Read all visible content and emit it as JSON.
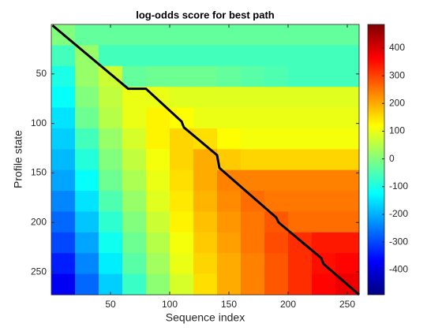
{
  "chart_data": {
    "type": "heatmap",
    "title": "log-odds score for best path",
    "x_label": "Sequence index",
    "y_label": "Profile state",
    "colormap": "jet",
    "xlim": [
      0,
      260
    ],
    "ylim": [
      0,
      273
    ],
    "y_reversed": true,
    "xticks": [
      50,
      100,
      150,
      200,
      250
    ],
    "yticks": [
      50,
      100,
      150,
      200,
      250
    ],
    "clim": [
      -490,
      485
    ],
    "cticks": [
      -400,
      -300,
      -200,
      -100,
      0,
      100,
      200,
      300,
      400
    ],
    "x": [
      10,
      30,
      50,
      70,
      90,
      110,
      130,
      150,
      170,
      190,
      210,
      230,
      250
    ],
    "y": [
      10.5,
      31.5,
      52.5,
      73.5,
      94.5,
      115.5,
      136.5,
      157.5,
      178.5,
      199.5,
      220.5,
      241.5,
      262.5
    ],
    "z": [
      [
        0,
        -30,
        -30,
        -30,
        -30,
        -30,
        -30,
        -30,
        -30,
        -30,
        -30,
        -30,
        -30
      ],
      [
        -60,
        20,
        -60,
        -60,
        -60,
        -60,
        -60,
        -60,
        -60,
        -60,
        -60,
        -60,
        -60
      ],
      [
        -100,
        20,
        70,
        -30,
        -20,
        -20,
        -20,
        -30,
        -40,
        -50,
        -60,
        -60,
        -60
      ],
      [
        -120,
        0,
        60,
        100,
        100,
        90,
        90,
        90,
        90,
        90,
        90,
        90,
        90
      ],
      [
        -150,
        -20,
        50,
        100,
        130,
        120,
        100,
        100,
        100,
        100,
        100,
        100,
        100
      ],
      [
        -170,
        -60,
        20,
        80,
        130,
        160,
        150,
        120,
        110,
        110,
        110,
        110,
        110
      ],
      [
        -190,
        -90,
        0,
        60,
        110,
        160,
        200,
        170,
        160,
        160,
        160,
        160,
        160
      ],
      [
        -210,
        -120,
        -20,
        40,
        100,
        150,
        200,
        240,
        240,
        240,
        240,
        240,
        240
      ],
      [
        -240,
        -150,
        -50,
        20,
        90,
        140,
        190,
        230,
        260,
        250,
        250,
        250,
        250
      ],
      [
        -270,
        -180,
        -80,
        0,
        70,
        130,
        180,
        220,
        250,
        280,
        260,
        260,
        260
      ],
      [
        -300,
        -210,
        -110,
        -20,
        50,
        110,
        170,
        210,
        250,
        290,
        320,
        340,
        340
      ],
      [
        -340,
        -240,
        -140,
        -40,
        30,
        100,
        160,
        200,
        240,
        280,
        320,
        350,
        360
      ],
      [
        -380,
        -270,
        -170,
        -70,
        10,
        80,
        150,
        200,
        240,
        280,
        320,
        360,
        380
      ]
    ],
    "path": {
      "color": "#000000",
      "x": [
        1,
        65,
        80,
        110,
        112,
        140,
        142,
        190,
        192,
        228,
        230,
        260
      ],
      "y": [
        1,
        65,
        65,
        98,
        104,
        132,
        145,
        195,
        200,
        236,
        242,
        273
      ]
    }
  }
}
